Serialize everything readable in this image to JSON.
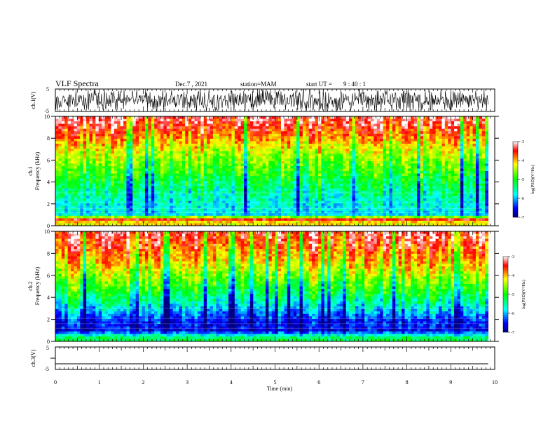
{
  "header": {
    "title": "VLF Spectra",
    "date": "Dec.7 , 2021",
    "station": "station=MAM",
    "start_label": "start UT =",
    "start_time": "9 : 40 : 1"
  },
  "chart_data": [
    {
      "type": "line",
      "panel": "ch1-waveform",
      "ylabel": "ch.1(V)",
      "ylim": [
        -5,
        5
      ],
      "yticks": [
        "5",
        "-5"
      ],
      "xlim": [
        0,
        10
      ],
      "description_of_signal": "dense impulsive waveform spanning nearly full range"
    },
    {
      "type": "heatmap",
      "panel": "ch1-spectrogram",
      "ylabel_line1": "ch.1",
      "ylabel_line2": "Frequency (kHz)",
      "ylim": [
        0,
        10
      ],
      "yticks": [
        "0",
        "2",
        "4",
        "6",
        "8",
        "10"
      ],
      "xlim": [
        0,
        9.85
      ],
      "colorbar": {
        "label": "log(PSD)(V²/Hz)",
        "range": [
          -7,
          -3
        ],
        "ticks": [
          "-3",
          "-4",
          "-5",
          "-6",
          "-7"
        ]
      },
      "profile_log_psd_by_freq_khz": [
        {
          "f": 0.3,
          "v": -4.2
        },
        {
          "f": 0.6,
          "v": -3.4
        },
        {
          "f": 1.0,
          "v": -5.8
        },
        {
          "f": 2.0,
          "v": -5.7
        },
        {
          "f": 3.0,
          "v": -5.5
        },
        {
          "f": 4.0,
          "v": -5.2
        },
        {
          "f": 5.0,
          "v": -4.9
        },
        {
          "f": 6.0,
          "v": -4.6
        },
        {
          "f": 7.0,
          "v": -4.3
        },
        {
          "f": 8.0,
          "v": -3.9
        },
        {
          "f": 9.0,
          "v": -3.5
        },
        {
          "f": 10.0,
          "v": -3.2
        }
      ]
    },
    {
      "type": "heatmap",
      "panel": "ch2-spectrogram",
      "ylabel_line1": "ch.2",
      "ylabel_line2": "Frequency (kHz)",
      "ylim": [
        0,
        10
      ],
      "yticks": [
        "0",
        "2",
        "4",
        "6",
        "8",
        "10"
      ],
      "xlim": [
        0,
        9.85
      ],
      "colorbar": {
        "label": "log(PSD)(V²/Hz)",
        "range": [
          -7,
          -3
        ],
        "ticks": [
          "-3",
          "-4",
          "-5",
          "-6",
          "-7"
        ]
      },
      "profile_log_psd_by_freq_khz": [
        {
          "f": 0.3,
          "v": -5.2
        },
        {
          "f": 1.0,
          "v": -6.6
        },
        {
          "f": 2.0,
          "v": -6.4
        },
        {
          "f": 3.0,
          "v": -5.8
        },
        {
          "f": 4.0,
          "v": -5.3
        },
        {
          "f": 5.0,
          "v": -4.9
        },
        {
          "f": 6.0,
          "v": -4.5
        },
        {
          "f": 7.0,
          "v": -4.1
        },
        {
          "f": 8.0,
          "v": -3.8
        },
        {
          "f": 9.0,
          "v": -3.5
        },
        {
          "f": 10.0,
          "v": -3.3
        }
      ]
    },
    {
      "type": "line",
      "panel": "ch3-waveform",
      "ylabel": "ch.3(V)",
      "ylim": [
        -5,
        5
      ],
      "yticks": [
        "5",
        "0",
        "-5"
      ],
      "xlim": [
        0,
        10
      ],
      "x": [
        0,
        9.85
      ],
      "y": [
        -2.5,
        -2.5
      ]
    }
  ],
  "x_axis": {
    "label": "Time (min)",
    "ticks": [
      "0",
      "1",
      "2",
      "3",
      "4",
      "5",
      "6",
      "7",
      "8",
      "9",
      "10"
    ]
  }
}
